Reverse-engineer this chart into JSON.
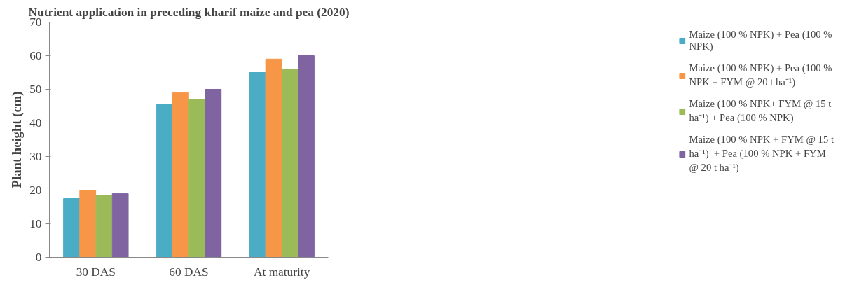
{
  "chart_data": {
    "type": "bar",
    "title": "Nutrient application in preceding kharif maize and pea (2020)",
    "ylabel": "Plant height (cm)",
    "categories": [
      "30 DAS",
      "60 DAS",
      "At maturity"
    ],
    "series": [
      {
        "name": "Maize (100 % NPK) + Pea (100 % NPK)",
        "color": "#4bacc6",
        "values": [
          17.5,
          45.5,
          55
        ]
      },
      {
        "name": "Maize (100 % NPK) + Pea (100 % NPK + FYM @ 20 t ha⁻¹)",
        "color": "#f79646",
        "values": [
          20,
          49,
          59
        ]
      },
      {
        "name": "Maize (100 % NPK+ FYM @ 15 t ha⁻¹) + Pea (100 % NPK)",
        "color": "#9bbb59",
        "values": [
          18.5,
          47,
          56
        ]
      },
      {
        "name": "Maize (100 % NPK + FYM @ 15 t ha⁻¹)  + Pea (100 % NPK + FYM @ 20 t ha⁻¹)",
        "color": "#8064a2",
        "values": [
          19,
          50,
          60
        ]
      }
    ],
    "ylim": [
      0,
      70
    ],
    "yticks": [
      0,
      10,
      20,
      30,
      40,
      50,
      60,
      70
    ],
    "grid": false,
    "legend": "right"
  }
}
